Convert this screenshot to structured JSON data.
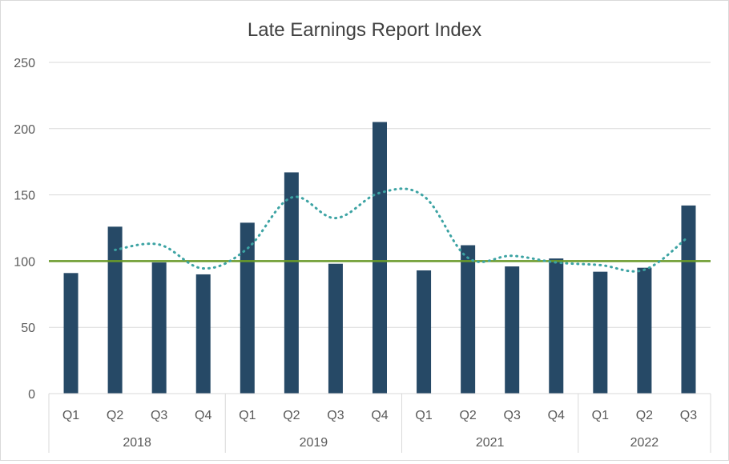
{
  "chart_data": {
    "type": "bar",
    "title": "Late Earnings Report Index",
    "xlabel": "",
    "ylabel": "",
    "ylim": [
      0,
      250
    ],
    "yticks": [
      0,
      50,
      100,
      150,
      200,
      250
    ],
    "grid": true,
    "legend": "none",
    "groups": [
      {
        "label": "2018",
        "quarters": [
          "Q1",
          "Q2",
          "Q3",
          "Q4"
        ]
      },
      {
        "label": "2019",
        "quarters": [
          "Q1",
          "Q2",
          "Q3",
          "Q4"
        ]
      },
      {
        "label": "2021",
        "quarters": [
          "Q1",
          "Q2",
          "Q3",
          "Q4"
        ]
      },
      {
        "label": "2022",
        "quarters": [
          "Q1",
          "Q2",
          "Q3"
        ]
      }
    ],
    "categories": [
      "2018 Q1",
      "2018 Q2",
      "2018 Q3",
      "2018 Q4",
      "2019 Q1",
      "2019 Q2",
      "2019 Q3",
      "2019 Q4",
      "2021 Q1",
      "2021 Q2",
      "2021 Q3",
      "2021 Q4",
      "2022 Q1",
      "2022 Q2",
      "2022 Q3"
    ],
    "series": [
      {
        "type": "bar",
        "color": "#264966",
        "values": [
          91,
          126,
          99,
          90,
          129,
          167,
          98,
          205,
          93,
          112,
          96,
          102,
          92,
          95,
          142
        ]
      },
      {
        "type": "trendline-moving-average",
        "style": "dotted",
        "color": "#3ca3a3",
        "values": [
          null,
          108.5,
          112.5,
          94.5,
          109.5,
          148,
          132.5,
          151.5,
          149,
          102.5,
          104,
          99,
          97,
          93.5,
          118.5
        ]
      },
      {
        "type": "reference-line",
        "color": "#6a9a2a",
        "value": 100
      }
    ]
  }
}
